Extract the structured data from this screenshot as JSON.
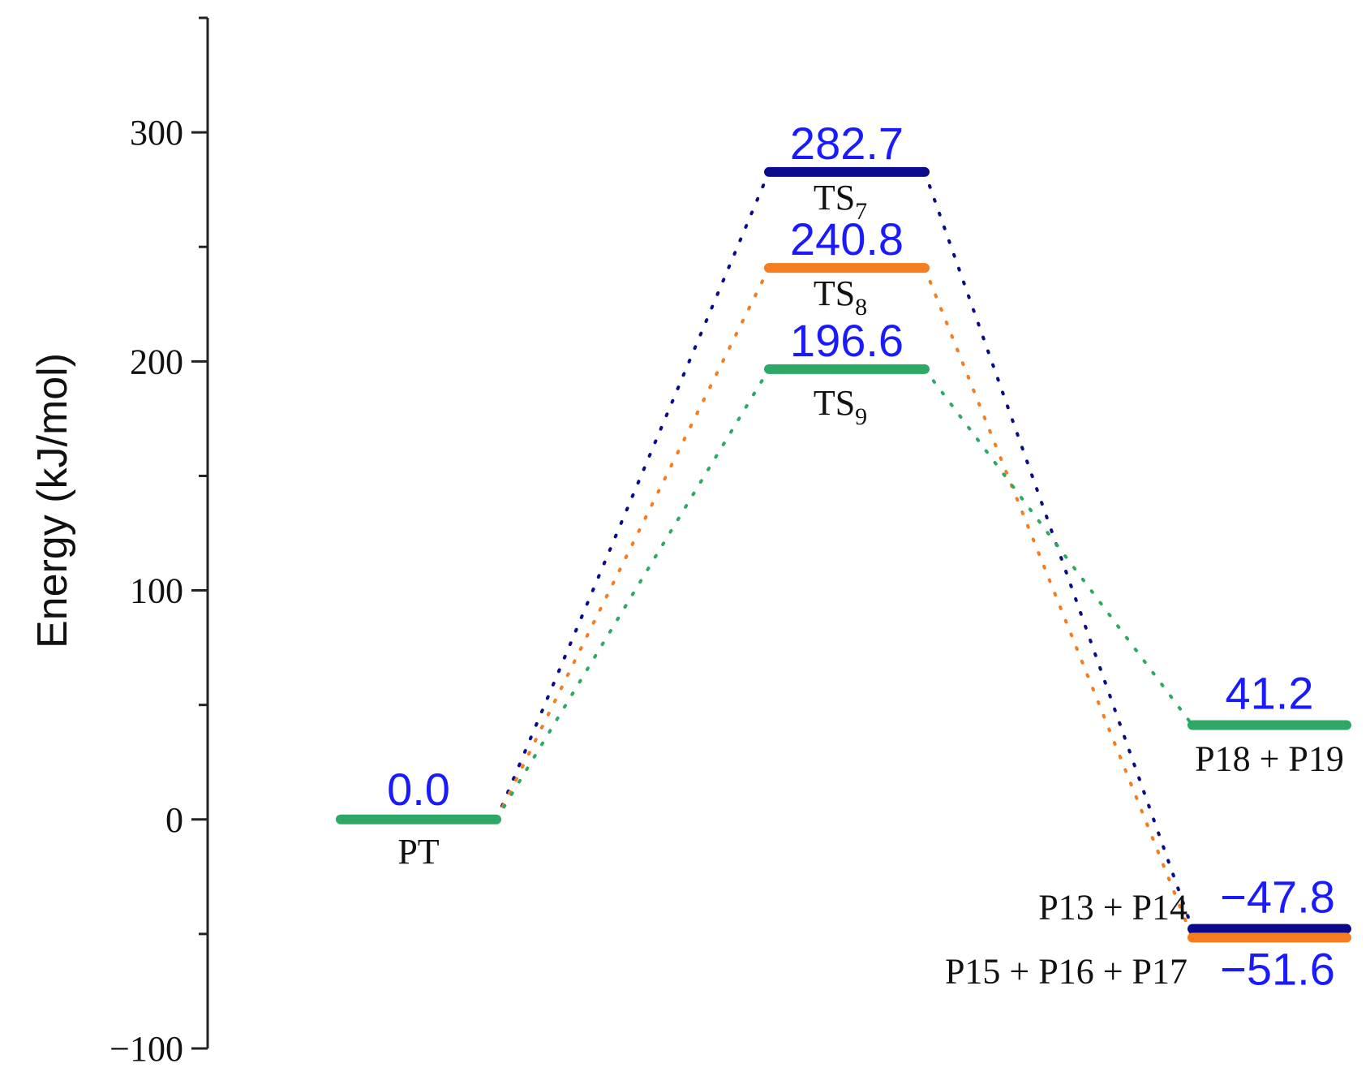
{
  "chart_data": {
    "type": "energy-level-diagram",
    "ylabel": "Energy (kJ/mol)",
    "ylim": [
      -100,
      350
    ],
    "y_ticks": [
      "−100",
      "0",
      "100",
      "200",
      "300"
    ],
    "y_tick_values": [
      -100,
      0,
      100,
      200,
      300
    ],
    "y_minor_values": [
      -50,
      50,
      150,
      250,
      350
    ],
    "grid": false,
    "states": [
      {
        "id": "PT",
        "column": 0,
        "energy": 0.0,
        "value_label": "0.0",
        "name": "PT",
        "name_sub": "",
        "color": "#2ea866"
      },
      {
        "id": "TS7",
        "column": 1,
        "energy": 282.7,
        "value_label": "282.7",
        "name": "TS",
        "name_sub": "7",
        "color": "#0a0a8c"
      },
      {
        "id": "TS8",
        "column": 1,
        "energy": 240.8,
        "value_label": "240.8",
        "name": "TS",
        "name_sub": "8",
        "color": "#f57c1f"
      },
      {
        "id": "TS9",
        "column": 1,
        "energy": 196.6,
        "value_label": "196.6",
        "name": "TS",
        "name_sub": "9",
        "color": "#2ea866"
      },
      {
        "id": "P18P19",
        "column": 2,
        "energy": 41.2,
        "value_label": "41.2",
        "name": "P18 + P19",
        "name_sub": "",
        "color": "#2ea866"
      },
      {
        "id": "P13P14",
        "column": 2,
        "energy": -47.8,
        "value_label": "−47.8",
        "name": "P13 + P14",
        "name_sub": "",
        "color": "#0a0a8c"
      },
      {
        "id": "P15P16P17",
        "column": 2,
        "energy": -51.6,
        "value_label": "−51.6",
        "name": "P15 + P16 + P17",
        "name_sub": "",
        "color": "#f57c1f"
      }
    ],
    "pathways": [
      {
        "color": "#0a0a8c",
        "states": [
          "PT",
          "TS7",
          "P13P14"
        ]
      },
      {
        "color": "#f57c1f",
        "states": [
          "PT",
          "TS8",
          "P15P16P17"
        ]
      },
      {
        "color": "#2ea866",
        "states": [
          "PT",
          "TS9",
          "P18P19"
        ]
      }
    ],
    "value_label_color": "#1a1aff"
  }
}
